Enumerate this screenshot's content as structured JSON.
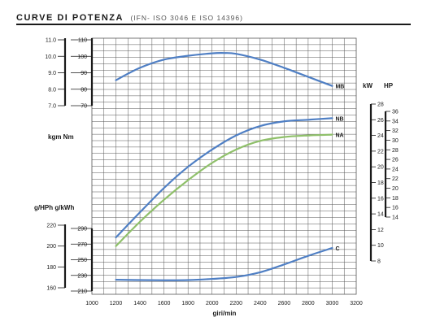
{
  "header": {
    "title": "CURVE DI POTENZA",
    "subtitle": "(IFN- ISO 3046 E ISO 14396)"
  },
  "colors": {
    "blue": "#4f7fc4",
    "green": "#8fc06a",
    "grid": "#555555",
    "text": "#1a1a1a"
  },
  "chart_data": {
    "type": "line",
    "title": "CURVE DI POTENZA",
    "xlabel": "giri/min",
    "x_ticks": [
      1000,
      1200,
      1400,
      1600,
      1800,
      2000,
      2200,
      2400,
      2600,
      2800,
      3000,
      3200
    ],
    "xlim": [
      1000,
      3200
    ],
    "axis_labels": {
      "torque": "kgm  Nm",
      "consumption": "g/HPh g/kWh",
      "kw": "kW",
      "hp": "HP"
    },
    "axes": {
      "kgm": {
        "ticks": [
          "11.0",
          "10.0",
          "9.0",
          "8.0",
          "7.0"
        ],
        "range": [
          7,
          11
        ]
      },
      "nm": {
        "ticks": [
          "110",
          "100",
          "90",
          "80",
          "70"
        ],
        "range": [
          70,
          110
        ]
      },
      "kw": {
        "ticks": [
          "28",
          "26",
          "24",
          "22",
          "20",
          "18",
          "16",
          "14",
          "12",
          "10",
          "8"
        ],
        "range": [
          8,
          28
        ]
      },
      "hp": {
        "ticks": [
          "36",
          "34",
          "32",
          "30",
          "28",
          "26",
          "24",
          "22",
          "20",
          "18",
          "16",
          "14"
        ],
        "range": [
          14,
          36
        ]
      },
      "g_hph": {
        "ticks": [
          "220",
          "200",
          "180",
          "160"
        ],
        "range": [
          160,
          220
        ]
      },
      "g_kwh": {
        "ticks": [
          "290",
          "270",
          "250",
          "230",
          "210"
        ],
        "range": [
          210,
          290
        ]
      }
    },
    "series": [
      {
        "name": "MB",
        "axis": "nm",
        "color": "#4f7fc4",
        "points": [
          [
            1200,
            85.5
          ],
          [
            1400,
            93
          ],
          [
            1600,
            98
          ],
          [
            1800,
            100.3
          ],
          [
            2000,
            101.8
          ],
          [
            2100,
            102
          ],
          [
            2200,
            101.5
          ],
          [
            2400,
            98
          ],
          [
            2600,
            93
          ],
          [
            2800,
            87.5
          ],
          [
            3000,
            82
          ]
        ]
      },
      {
        "name": "NB",
        "axis": "kw",
        "color": "#4f7fc4",
        "points": [
          [
            1200,
            11
          ],
          [
            1400,
            14.2
          ],
          [
            1600,
            17.3
          ],
          [
            1800,
            20
          ],
          [
            2000,
            22.2
          ],
          [
            2200,
            24
          ],
          [
            2400,
            25.2
          ],
          [
            2600,
            25.8
          ],
          [
            2800,
            26
          ],
          [
            3000,
            26.2
          ]
        ]
      },
      {
        "name": "NA",
        "axis": "kw",
        "color": "#8fc06a",
        "points": [
          [
            1200,
            9.9
          ],
          [
            1400,
            13
          ],
          [
            1600,
            15.8
          ],
          [
            1800,
            18.3
          ],
          [
            2000,
            20.5
          ],
          [
            2200,
            22.2
          ],
          [
            2400,
            23.3
          ],
          [
            2600,
            23.8
          ],
          [
            2800,
            24
          ],
          [
            3000,
            24.1
          ]
        ]
      },
      {
        "name": "C",
        "axis": "g_kwh",
        "color": "#4f7fc4",
        "points": [
          [
            1200,
            224.5
          ],
          [
            1400,
            224
          ],
          [
            1600,
            223.8
          ],
          [
            1800,
            224
          ],
          [
            2000,
            225.5
          ],
          [
            2200,
            228
          ],
          [
            2400,
            234
          ],
          [
            2600,
            244
          ],
          [
            2800,
            255
          ],
          [
            3000,
            265
          ]
        ]
      }
    ],
    "curve_labels": {
      "MB": "MB",
      "NB": "NB",
      "NA": "NA",
      "C": "C"
    },
    "grid": true
  }
}
